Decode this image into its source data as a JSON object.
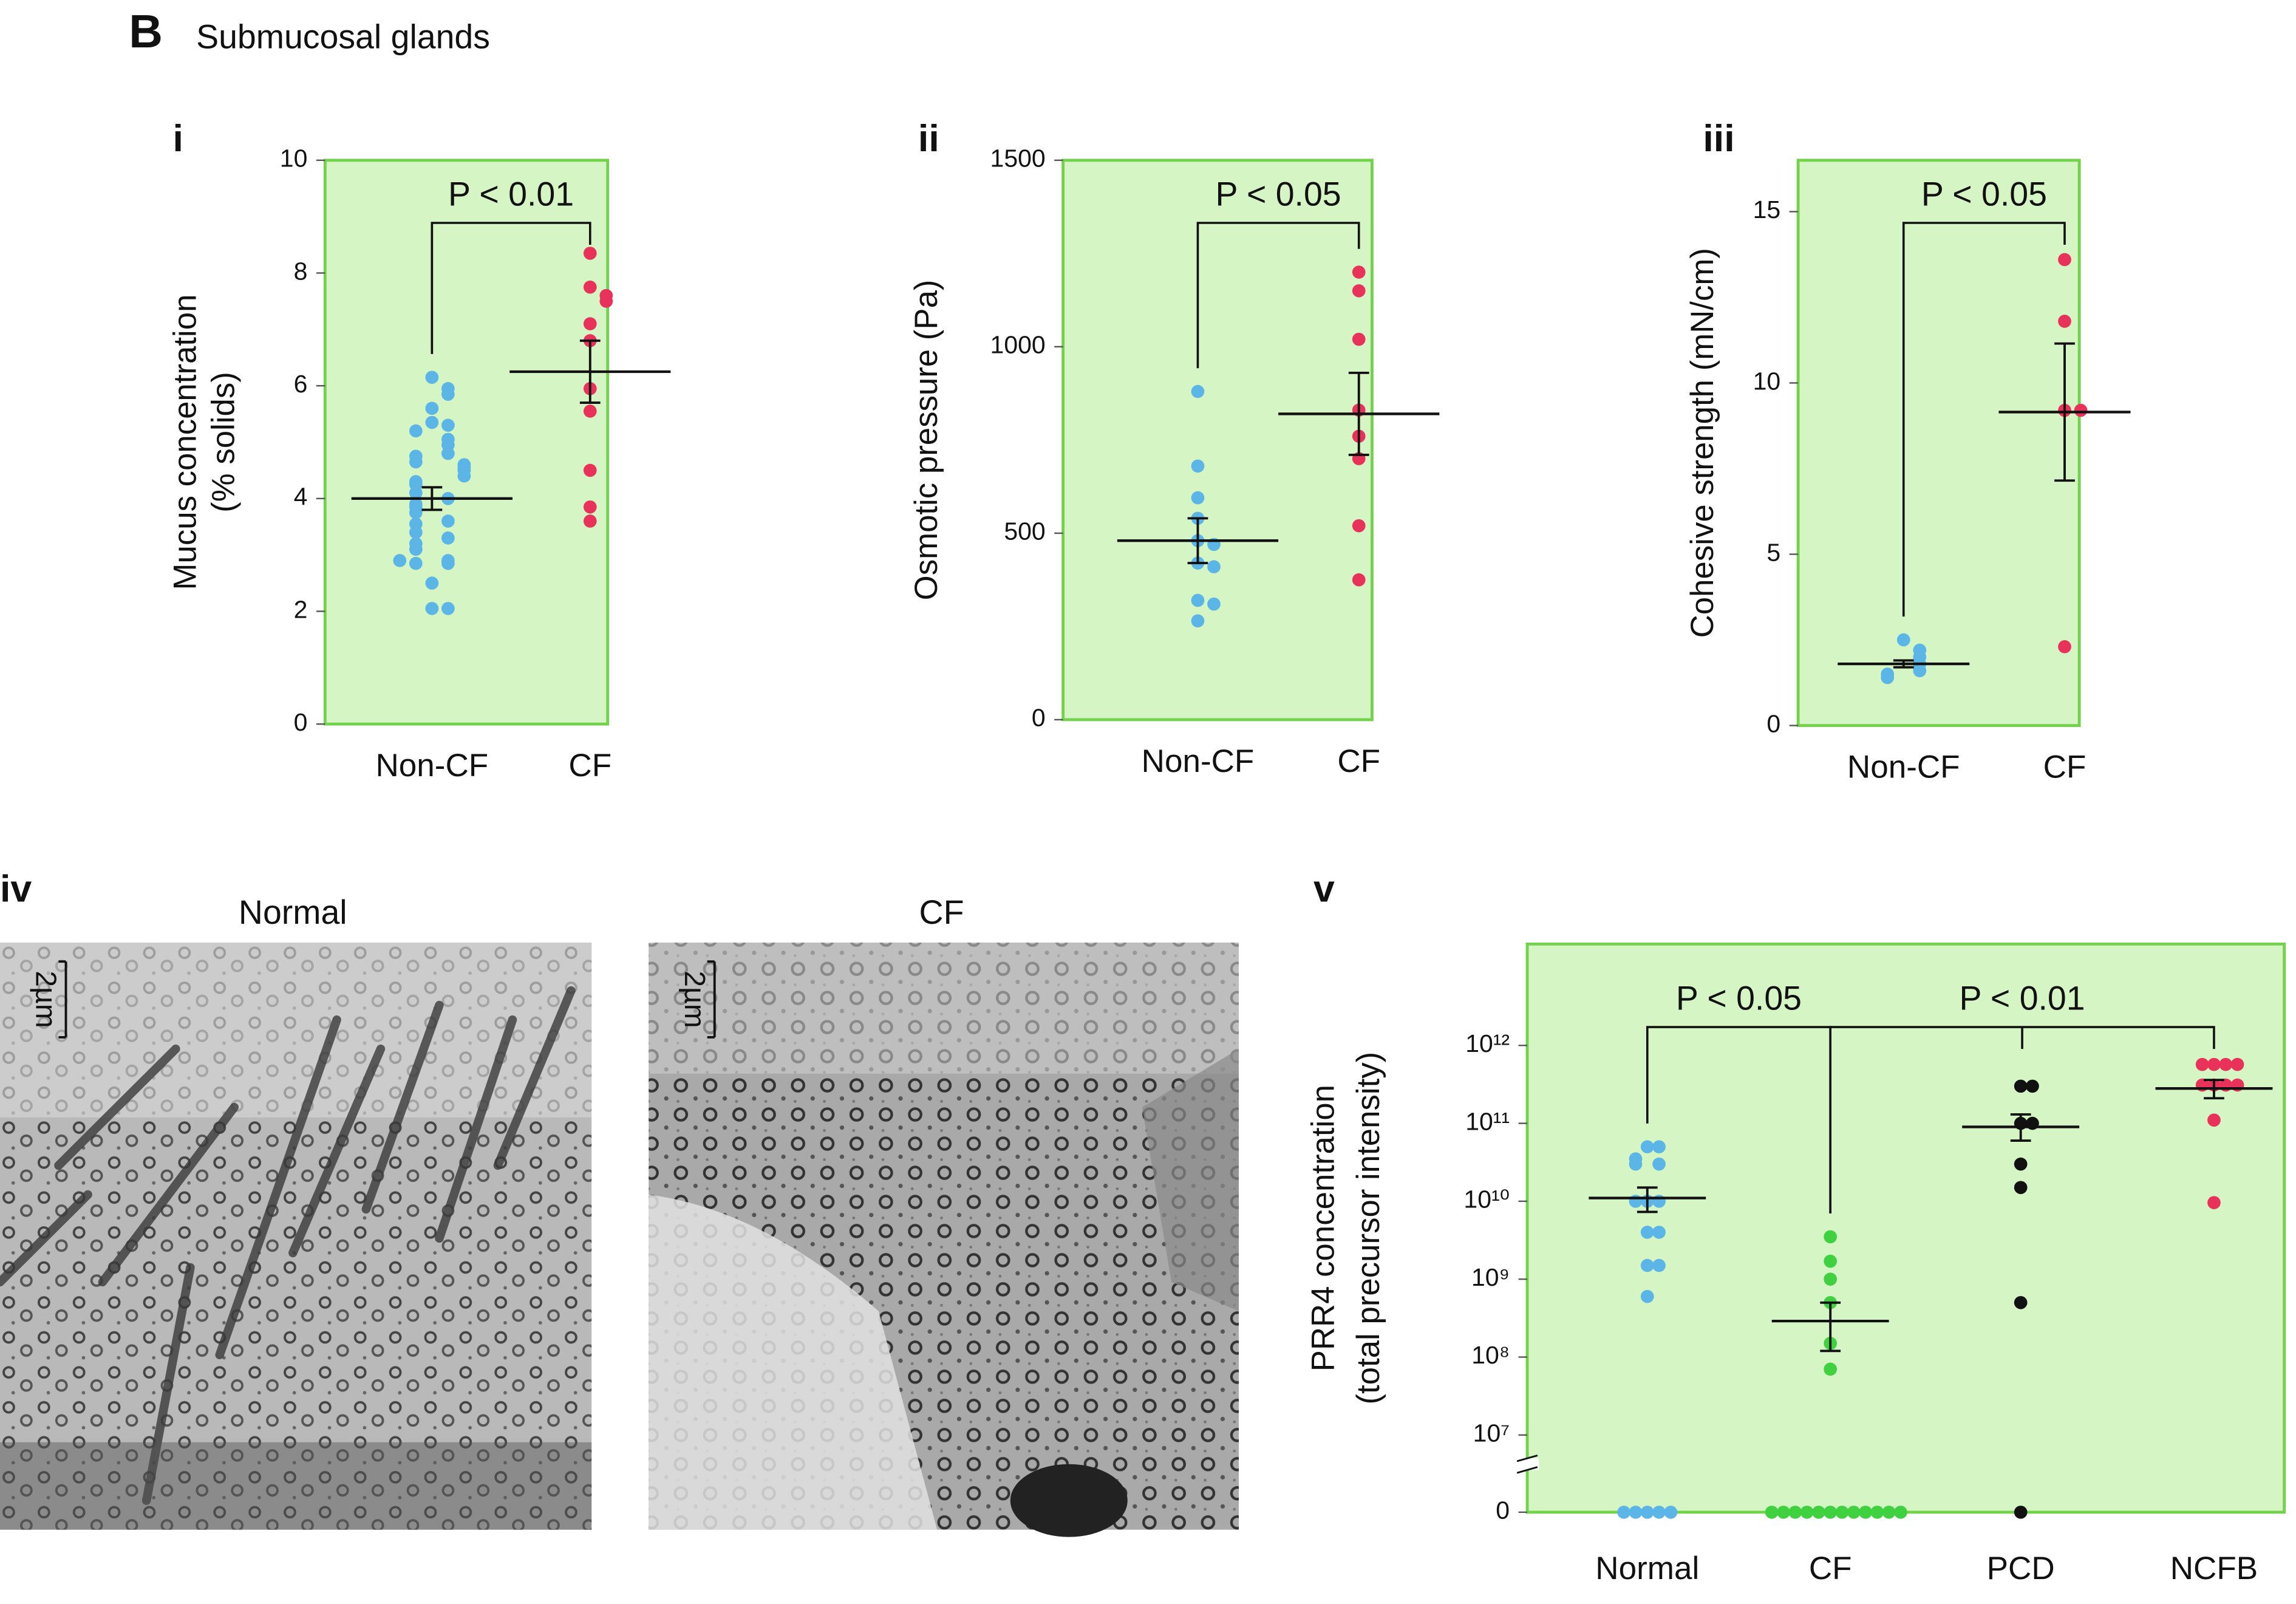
{
  "figure_label": "B",
  "figure_title": "Submucosal glands",
  "micrographs": {
    "label": "iv",
    "panels": [
      {
        "title": "Normal",
        "scale_bar": "2µm"
      },
      {
        "title": "CF",
        "scale_bar": "2µm"
      }
    ]
  },
  "chart_data": [
    {
      "type": "strip",
      "panel": "i",
      "ylabel": [
        "Mucus concentration",
        "(% solids)"
      ],
      "categories": [
        "Non-CF",
        "CF"
      ],
      "series": [
        {
          "color": "#5bb5e6",
          "values": [
            6.15,
            5.95,
            5.85,
            5.6,
            5.35,
            5.3,
            5.2,
            5.05,
            4.95,
            4.8,
            4.75,
            4.65,
            4.6,
            4.55,
            4.5,
            4.4,
            4.3,
            4.25,
            4.1,
            4.0,
            3.9,
            3.85,
            3.75,
            3.6,
            3.55,
            3.4,
            3.3,
            3.2,
            3.1,
            2.9,
            2.85,
            2.85,
            2.9,
            2.5,
            2.05,
            2.05
          ]
        },
        {
          "color": "#e8325a",
          "values": [
            8.35,
            7.75,
            7.6,
            7.5,
            7.1,
            6.8,
            5.95,
            5.55,
            4.5,
            3.85,
            3.6
          ]
        }
      ],
      "means": [
        4.0,
        6.25
      ],
      "errors": [
        0.2,
        0.55
      ],
      "ylim": [
        0,
        10
      ],
      "yticks": [
        0,
        2,
        4,
        6,
        8,
        10
      ],
      "background": "#d5f5c5",
      "frame_color": "#72d24c",
      "annotations": [
        {
          "text": "P < 0.01",
          "between": [
            0,
            1
          ]
        }
      ]
    },
    {
      "type": "strip",
      "panel": "ii",
      "ylabel": "Osmotic pressure (Pa)",
      "categories": [
        "Non-CF",
        "CF"
      ],
      "series": [
        {
          "color": "#5bb5e6",
          "values": [
            880,
            680,
            595,
            540,
            480,
            470,
            420,
            410,
            320,
            310,
            265
          ]
        },
        {
          "color": "#e8325a",
          "values": [
            1200,
            1150,
            1020,
            830,
            760,
            700,
            520,
            375
          ]
        }
      ],
      "means": [
        480,
        820
      ],
      "errors": [
        60,
        110
      ],
      "ylim": [
        0,
        1500
      ],
      "yticks": [
        0,
        500,
        1000,
        1500
      ],
      "background": "#d5f5c5",
      "frame_color": "#72d24c",
      "annotations": [
        {
          "text": "P < 0.05",
          "between": [
            0,
            1
          ]
        }
      ]
    },
    {
      "type": "strip",
      "panel": "iii",
      "ylabel": "Cohesive strength (mN/cm)",
      "categories": [
        "Non-CF",
        "CF"
      ],
      "series": [
        {
          "color": "#5bb5e6",
          "values": [
            2.5,
            2.2,
            2.0,
            1.8,
            1.6,
            1.5,
            1.4
          ]
        },
        {
          "color": "#e8325a",
          "values": [
            13.6,
            11.8,
            9.2,
            9.2,
            2.3
          ]
        }
      ],
      "means": [
        1.8,
        9.15
      ],
      "errors": [
        0.1,
        2.0
      ],
      "ylim": [
        0,
        16.5
      ],
      "yticks": [
        0,
        5,
        10,
        15
      ],
      "background": "#d5f5c5",
      "frame_color": "#72d24c",
      "annotations": [
        {
          "text": "P < 0.05",
          "between": [
            0,
            1
          ]
        }
      ]
    },
    {
      "type": "strip",
      "panel": "v",
      "ylabel": [
        "PRR4 concentration",
        "(total precursor intensity)"
      ],
      "categories": [
        "Normal",
        "CF",
        "PCD",
        "NCFB"
      ],
      "series": [
        {
          "color": "#5bb5e6",
          "values": [
            50000000000,
            50000000000,
            35000000000,
            30000000000,
            30000000000,
            10000000000,
            10000000000,
            10000000000,
            4000000000,
            4000000000,
            1500000000,
            1500000000,
            600000000,
            0,
            0,
            0,
            0,
            0
          ]
        },
        {
          "color": "#3fd13f",
          "values": [
            3500000000,
            1700000000,
            1000000000,
            500000000,
            150000000,
            70000000,
            0,
            0,
            0,
            0,
            0,
            0,
            0,
            0,
            0,
            0,
            0,
            0
          ]
        },
        {
          "color": "#111111",
          "values": [
            300000000000,
            300000000000,
            100000000000,
            100000000000,
            30000000000,
            15000000000,
            500000000,
            0
          ]
        },
        {
          "color": "#e8325a",
          "values": [
            570000000000,
            570000000000,
            570000000000,
            570000000000,
            310000000000,
            310000000000,
            310000000000,
            310000000000,
            110000000000,
            9600000000
          ]
        }
      ],
      "means": [
        11000000000,
        290000000,
        90000000000,
        280000000000
      ],
      "err_low": [
        7300000000,
        120000000,
        60000000000,
        210000000000
      ],
      "err_high": [
        15000000000,
        500000000,
        130000000000,
        360000000000
      ],
      "log_scale": true,
      "axis_break": true,
      "ylim": [
        0,
        20000000000000
      ],
      "yticks": [
        0,
        {
          "value": 10000000,
          "label": "10⁷"
        },
        {
          "value": 100000000,
          "label": "10⁸"
        },
        {
          "value": 1000000000,
          "label": "10⁹"
        },
        {
          "value": 10000000000,
          "label": "10¹⁰"
        },
        {
          "value": 100000000000,
          "label": "10¹¹"
        },
        {
          "value": 1000000000000,
          "label": "10¹²"
        }
      ],
      "background": "#d5f5c5",
      "frame_color": "#72d24c",
      "annotations": [
        {
          "text": "P < 0.05",
          "between": [
            0,
            1
          ]
        },
        {
          "text": "P < 0.01",
          "between": [
            1,
            3
          ]
        }
      ]
    }
  ]
}
